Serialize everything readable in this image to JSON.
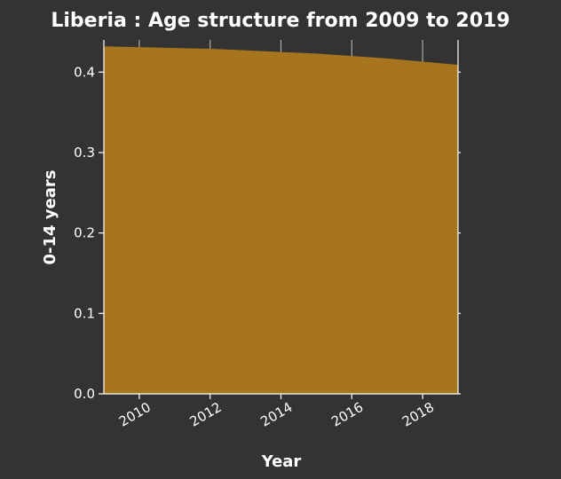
{
  "chart_data": {
    "type": "area",
    "title": "Liberia : Age structure from 2009 to 2019",
    "xlabel": "Year",
    "ylabel": "0-14 years",
    "x": [
      2009,
      2010,
      2011,
      2012,
      2013,
      2014,
      2015,
      2016,
      2017,
      2018,
      2019
    ],
    "series": [
      {
        "values": [
          0.432,
          0.431,
          0.43,
          0.429,
          0.427,
          0.425,
          0.423,
          0.42,
          0.417,
          0.413,
          0.409
        ]
      }
    ],
    "xlim": [
      2009,
      2019
    ],
    "ylim": [
      0,
      0.44
    ],
    "xticks": [
      2010,
      2012,
      2014,
      2016,
      2018
    ],
    "xtick_labels": [
      "2010",
      "2012",
      "2014",
      "2016",
      "2018"
    ],
    "yticks": [
      0.0,
      0.1,
      0.2,
      0.3,
      0.4
    ],
    "ytick_labels": [
      "0.0",
      "0.1",
      "0.2",
      "0.3",
      "0.4"
    ],
    "grid": true,
    "colors": {
      "area": "#a6751d",
      "background": "#333333",
      "grid": "#aaaaaa",
      "text": "#ffffff"
    }
  }
}
